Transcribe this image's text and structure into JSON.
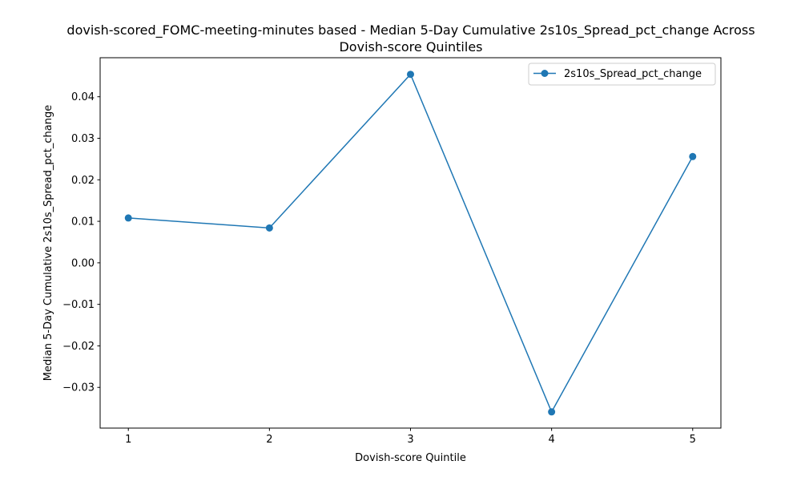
{
  "chart_data": {
    "type": "line",
    "title_line1": "dovish-scored_FOMC-meeting-minutes based - Median 5-Day Cumulative 2s10s_Spread_pct_change Across",
    "title_line2": "Dovish-score Quintiles",
    "xlabel": "Dovish-score Quintile",
    "ylabel": "Median 5-Day Cumulative 2s10s_Spread_pct_change",
    "x": [
      1,
      2,
      3,
      4,
      5
    ],
    "x_tick_labels": [
      "1",
      "2",
      "3",
      "4",
      "5"
    ],
    "y_ticks": [
      -0.03,
      -0.02,
      -0.01,
      0.0,
      0.01,
      0.02,
      0.03,
      0.04
    ],
    "y_tick_labels": [
      "−0.03",
      "−0.02",
      "−0.01",
      "0.00",
      "0.01",
      "0.02",
      "0.03",
      "0.04"
    ],
    "xlim": [
      0.8,
      5.2
    ],
    "ylim": [
      -0.0398,
      0.0494
    ],
    "series": [
      {
        "name": "2s10s_Spread_pct_change",
        "values": [
          0.0108,
          0.0084,
          0.0454,
          -0.0359,
          0.0256
        ],
        "color": "#1f77b4"
      }
    ],
    "legend_position": "top-right",
    "grid": false
  }
}
